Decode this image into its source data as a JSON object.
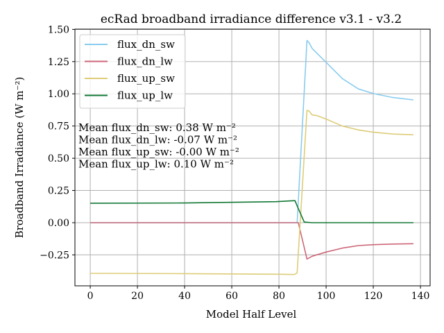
{
  "chart_data": {
    "type": "line",
    "title": "ecRad broadband irradiance difference v3.1 - v3.2",
    "xlabel": "Model Half Level",
    "ylabel": "Broadband Irradiance (W m⁻²)",
    "xlim": [
      -6.5,
      144.1
    ],
    "ylim": [
      -0.49,
      1.502
    ],
    "xticks": [
      0,
      20,
      40,
      60,
      80,
      100,
      120,
      140
    ],
    "yticks": [
      -0.25,
      0.0,
      0.25,
      0.5,
      0.75,
      1.0,
      1.25,
      1.5
    ],
    "xtick_labels": [
      "0",
      "20",
      "40",
      "60",
      "80",
      "100",
      "120",
      "140"
    ],
    "ytick_labels": [
      "−0.25",
      "0.00",
      "0.25",
      "0.50",
      "0.75",
      "1.00",
      "1.25",
      "1.50"
    ],
    "grid": true,
    "legend_position": "top-left",
    "series": [
      {
        "name": "flux_dn_sw",
        "color": "#88CCEE",
        "x": [
          0,
          87.7,
          91.9,
          92.8,
          94.1,
          100,
          106.9,
          113.7,
          120.1,
          128.4,
          137
        ],
        "y": [
          0,
          0,
          1.414,
          1.396,
          1.352,
          1.244,
          1.118,
          1.038,
          1.002,
          0.971,
          0.953
        ]
      },
      {
        "name": "flux_dn_lw",
        "color": "#CC6677",
        "x": [
          0,
          88.2,
          91.9,
          94.1,
          100,
          106.9,
          113.7,
          120,
          128,
          137
        ],
        "y": [
          0,
          0,
          -0.282,
          -0.26,
          -0.228,
          -0.197,
          -0.178,
          -0.171,
          -0.166,
          -0.163
        ]
      },
      {
        "name": "flux_up_sw",
        "color": "#DDCC77",
        "x": [
          0,
          40,
          80,
          86.5,
          87.7,
          91.9,
          92.8,
          94.1,
          96.1,
          100,
          106.9,
          113.7,
          120,
          128.4,
          137
        ],
        "y": [
          -0.393,
          -0.395,
          -0.4,
          -0.402,
          -0.39,
          0.872,
          0.866,
          0.836,
          0.831,
          0.804,
          0.75,
          0.72,
          0.702,
          0.688,
          0.682
        ]
      },
      {
        "name": "flux_up_lw",
        "color": "#117733",
        "x": [
          0,
          40,
          78.8,
          86.8,
          87.7,
          90.7,
          94.1,
          137
        ],
        "y": [
          0.151,
          0.153,
          0.163,
          0.171,
          0.131,
          0.005,
          0,
          0
        ]
      }
    ],
    "annotations": [
      "Mean flux_dn_sw: 0.38 W m⁻²",
      "Mean flux_dn_lw: -0.07 W m⁻²",
      "Mean flux_up_sw: -0.00 W m⁻²",
      "Mean flux_up_lw: 0.10 W m⁻²"
    ]
  }
}
